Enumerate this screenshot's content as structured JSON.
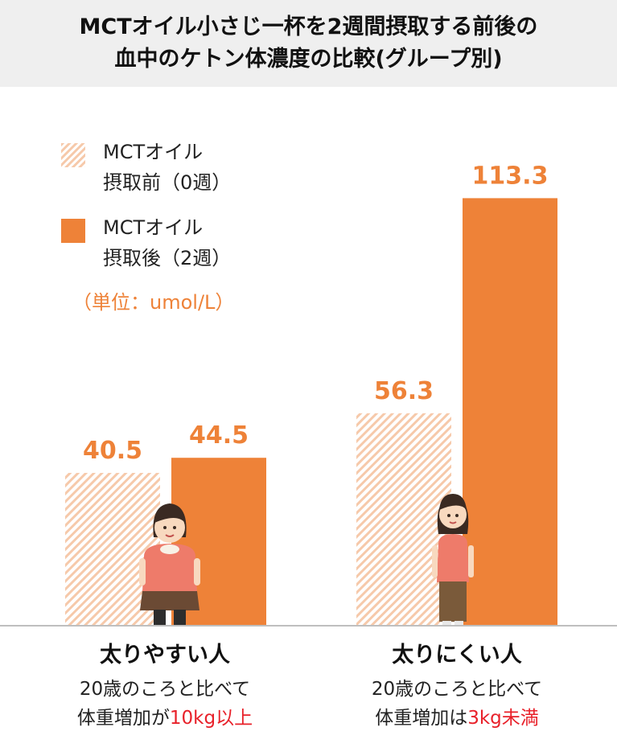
{
  "title": {
    "line1": "MCTオイル小さじ一杯を2週間摂取する前後の",
    "line2": "血中のケトン体濃度の比較(グループ別)"
  },
  "legend": {
    "before": {
      "line1": "MCTオイル",
      "line2": "摂取前（0週）"
    },
    "after": {
      "line1": "MCTオイル",
      "line2": "摂取後（2週）"
    }
  },
  "unit_label": "（単位：umol/L）",
  "colors": {
    "after": "#ee8238",
    "before_hatch": "#f6c9aa",
    "label": "#ee8238",
    "highlight": "#e8212a"
  },
  "groups": [
    {
      "name": "太りやすい人",
      "desc_line1": "20歳のころと比べて",
      "desc_line2_prefix": "体重増加が",
      "desc_line2_highlight": "10kg以上"
    },
    {
      "name": "太りにくい人",
      "desc_line1": "20歳のころと比べて",
      "desc_line2_prefix": "体重増加は",
      "desc_line2_highlight": "3kg未満"
    }
  ],
  "chart_data": {
    "type": "bar",
    "categories": [
      "太りやすい人",
      "太りにくい人"
    ],
    "series": [
      {
        "name": "MCTオイル摂取前（0週）",
        "values": [
          40.5,
          56.3
        ],
        "labels": [
          "40.5",
          "56.3"
        ]
      },
      {
        "name": "MCTオイル摂取後（2週）",
        "values": [
          44.5,
          113.3
        ],
        "labels": [
          "44.5",
          "113.3"
        ]
      }
    ],
    "unit": "umol/L",
    "grid": false
  }
}
